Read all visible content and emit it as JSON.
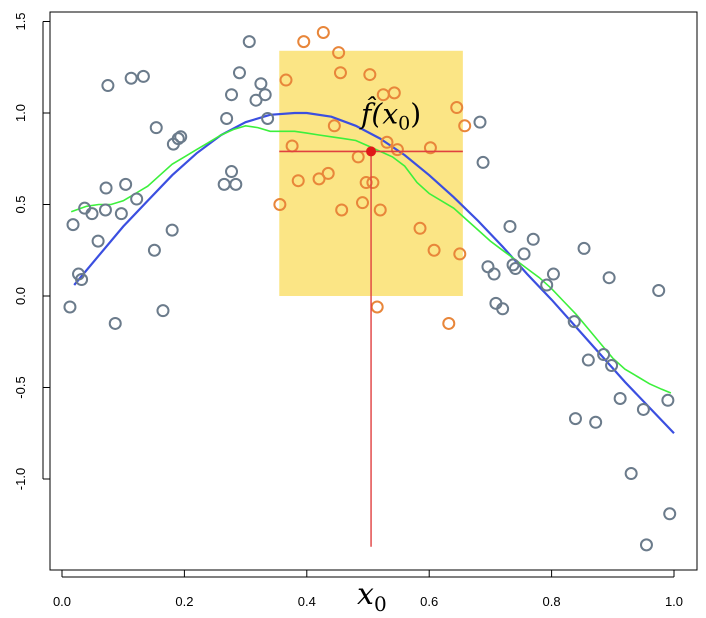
{
  "chart_data": {
    "type": "scatter",
    "title": "",
    "xlabel": "",
    "ylabel": "",
    "xlim": [
      -0.02,
      1.02
    ],
    "ylim": [
      -1.5,
      1.57
    ],
    "x_ticks": [
      0.0,
      0.2,
      0.4,
      0.6,
      0.8,
      1.0
    ],
    "x_tick_labels": [
      "0.0",
      "0.2",
      "0.4",
      "0.6",
      "0.8",
      "1.0"
    ],
    "y_ticks": [
      -1.0,
      -0.5,
      0.0,
      0.5,
      1.0,
      1.5
    ],
    "y_tick_labels": [
      "-1.0",
      "-0.5",
      "0.0",
      "0.5",
      "1.0",
      "1.5"
    ],
    "grid": false,
    "colors": {
      "outside_points": "#6b7b8b",
      "inside_points": "#e8863a",
      "true_function": "#3b4fe0",
      "local_estimate": "#3cf03c",
      "window": "#fbe585",
      "target_marker": "#e01818",
      "target_lines": "#e04040"
    },
    "window": {
      "x_range": [
        0.355,
        0.655
      ],
      "y_range": [
        0.0,
        1.34
      ]
    },
    "target": {
      "x": 0.505,
      "fx": 0.79
    },
    "annotations": {
      "x0_label": "x",
      "x0_sub": "0",
      "fhat_label": "f̂(x",
      "fhat_sub": "0",
      "fhat_close": ")"
    },
    "outside_points": {
      "x": [
        0.013,
        0.018,
        0.027,
        0.032,
        0.037,
        0.049,
        0.059,
        0.071,
        0.072,
        0.075,
        0.087,
        0.097,
        0.104,
        0.113,
        0.122,
        0.133,
        0.151,
        0.154,
        0.165,
        0.18,
        0.182,
        0.19,
        0.194,
        0.265,
        0.269,
        0.277,
        0.277,
        0.284,
        0.29,
        0.306,
        0.317,
        0.325,
        0.332,
        0.336,
        0.706,
        0.683,
        0.688,
        0.696,
        0.709,
        0.72,
        0.732,
        0.737,
        0.741,
        0.755,
        0.77,
        0.792,
        0.803,
        0.837,
        0.839,
        0.853,
        0.86,
        0.872,
        0.885,
        0.894,
        0.898,
        0.912,
        0.93,
        0.95,
        0.955,
        0.975,
        0.99,
        0.993
      ],
      "y": [
        -0.06,
        0.39,
        0.12,
        0.09,
        0.48,
        0.45,
        0.3,
        0.47,
        0.59,
        1.15,
        -0.15,
        0.45,
        0.61,
        1.19,
        0.53,
        1.2,
        0.25,
        0.92,
        -0.08,
        0.36,
        0.83,
        0.86,
        0.87,
        0.61,
        0.97,
        0.68,
        1.1,
        0.61,
        1.22,
        1.39,
        1.07,
        1.16,
        1.1,
        0.97,
        0.12,
        0.95,
        0.73,
        0.16,
        -0.04,
        -0.07,
        0.38,
        0.17,
        0.15,
        0.23,
        0.31,
        0.06,
        0.12,
        -0.14,
        -0.67,
        0.26,
        -0.35,
        -0.69,
        -0.32,
        0.1,
        -0.38,
        -0.56,
        -0.97,
        -0.62,
        -1.36,
        0.03,
        -0.57,
        -1.19
      ]
    },
    "inside_points": {
      "x": [
        0.356,
        0.366,
        0.376,
        0.386,
        0.395,
        0.42,
        0.427,
        0.435,
        0.445,
        0.452,
        0.455,
        0.457,
        0.484,
        0.491,
        0.497,
        0.503,
        0.508,
        0.515,
        0.52,
        0.525,
        0.531,
        0.543,
        0.548,
        0.585,
        0.602,
        0.608,
        0.632,
        0.645,
        0.65,
        0.658
      ],
      "y": [
        0.5,
        1.18,
        0.82,
        0.63,
        1.39,
        0.64,
        1.44,
        0.67,
        0.93,
        1.33,
        1.22,
        0.47,
        0.76,
        0.51,
        0.62,
        1.21,
        0.62,
        -0.06,
        0.47,
        1.1,
        0.84,
        1.11,
        0.8,
        0.37,
        0.81,
        0.25,
        -0.15,
        1.03,
        0.23,
        0.93
      ]
    },
    "true_function": {
      "x": [
        0.02,
        0.06,
        0.1,
        0.14,
        0.18,
        0.22,
        0.26,
        0.3,
        0.34,
        0.38,
        0.4,
        0.44,
        0.48,
        0.52,
        0.56,
        0.6,
        0.64,
        0.68,
        0.72,
        0.76,
        0.8,
        0.84,
        0.88,
        0.92,
        0.96,
        1.0
      ],
      "y": [
        0.06,
        0.22,
        0.38,
        0.52,
        0.66,
        0.78,
        0.88,
        0.95,
        0.99,
        1.0,
        1.0,
        0.98,
        0.93,
        0.86,
        0.77,
        0.66,
        0.54,
        0.41,
        0.27,
        0.12,
        -0.02,
        -0.17,
        -0.32,
        -0.47,
        -0.61,
        -0.75
      ]
    },
    "local_estimate": {
      "x": [
        0.015,
        0.04,
        0.06,
        0.08,
        0.1,
        0.12,
        0.14,
        0.16,
        0.18,
        0.2,
        0.22,
        0.24,
        0.26,
        0.28,
        0.3,
        0.32,
        0.34,
        0.36,
        0.38,
        0.4,
        0.42,
        0.44,
        0.46,
        0.48,
        0.5,
        0.52,
        0.54,
        0.56,
        0.58,
        0.6,
        0.62,
        0.64,
        0.66,
        0.68,
        0.7,
        0.72,
        0.74,
        0.76,
        0.78,
        0.8,
        0.82,
        0.84,
        0.86,
        0.88,
        0.9,
        0.92,
        0.94,
        0.96,
        0.98,
        0.995
      ],
      "y": [
        0.46,
        0.49,
        0.5,
        0.5,
        0.52,
        0.56,
        0.6,
        0.66,
        0.72,
        0.76,
        0.8,
        0.84,
        0.88,
        0.91,
        0.93,
        0.92,
        0.9,
        0.9,
        0.9,
        0.89,
        0.88,
        0.87,
        0.86,
        0.85,
        0.82,
        0.79,
        0.76,
        0.71,
        0.62,
        0.56,
        0.52,
        0.48,
        0.42,
        0.36,
        0.3,
        0.25,
        0.2,
        0.15,
        0.1,
        0.04,
        -0.03,
        -0.1,
        -0.18,
        -0.26,
        -0.34,
        -0.4,
        -0.44,
        -0.48,
        -0.51,
        -0.53
      ]
    }
  }
}
